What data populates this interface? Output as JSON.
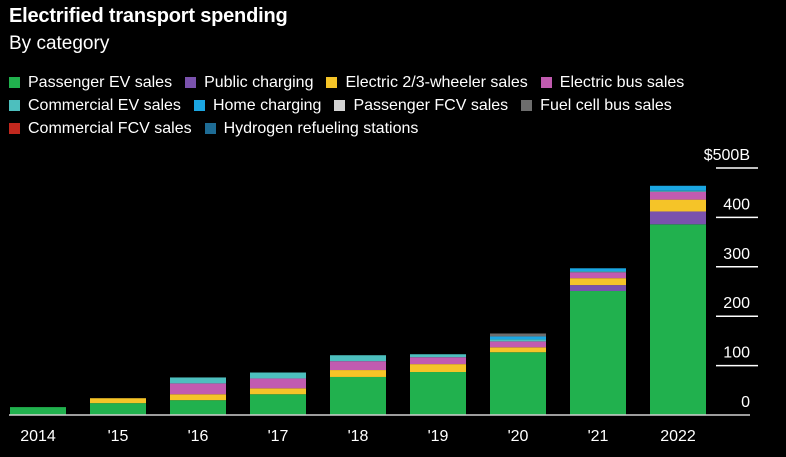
{
  "chart_data": {
    "type": "bar",
    "stacked": true,
    "title": "Electrified transport spending",
    "subtitle": "By category",
    "xlabel": "",
    "ylabel": "",
    "unit_prefix": "$",
    "unit_suffix": "B",
    "ylim": [
      0,
      500
    ],
    "yticks": [
      0,
      100,
      200,
      300,
      400,
      500
    ],
    "ytick_labels": [
      "0",
      "100",
      "200",
      "300",
      "400",
      "$500B"
    ],
    "categories": [
      "2014",
      "'15",
      "'16",
      "'17",
      "'18",
      "'19",
      "'20",
      "'21",
      "2022"
    ],
    "legend_position": "top-left",
    "series": [
      {
        "name": "Passenger EV sales",
        "color": "#21b14e",
        "values": [
          16,
          24,
          30,
          42,
          77,
          87,
          127,
          251,
          386
        ]
      },
      {
        "name": "Public charging",
        "color": "#7a52ad",
        "values": [
          0,
          0,
          0,
          0,
          0,
          0,
          0,
          12,
          26
        ]
      },
      {
        "name": "Electric 2/3-wheeler sales",
        "color": "#f5c428",
        "values": [
          0,
          10,
          12,
          12,
          14,
          16,
          10,
          14,
          24
        ]
      },
      {
        "name": "Electric bus sales",
        "color": "#c15bb0",
        "values": [
          0,
          0,
          22,
          20,
          18,
          14,
          12,
          12,
          16
        ]
      },
      {
        "name": "Commercial EV sales",
        "color": "#4dbfbe",
        "values": [
          0,
          0,
          12,
          12,
          12,
          6,
          4,
          2,
          2
        ]
      },
      {
        "name": "Home charging",
        "color": "#1ba6e2",
        "values": [
          0,
          0,
          0,
          0,
          0,
          0,
          6,
          6,
          10
        ]
      },
      {
        "name": "Passenger FCV sales",
        "color": "#d3d3d3",
        "values": [
          0,
          0,
          0,
          0,
          0,
          0,
          0,
          0,
          0
        ]
      },
      {
        "name": "Fuel cell bus sales",
        "color": "#6d6d6d",
        "values": [
          0,
          0,
          0,
          0,
          0,
          0,
          6,
          0,
          0
        ]
      },
      {
        "name": "Commercial FCV sales",
        "color": "#c1281e",
        "values": [
          0,
          0,
          0,
          0,
          0,
          0,
          0,
          0,
          0
        ]
      },
      {
        "name": "Hydrogen refueling stations",
        "color": "#1e6c95",
        "values": [
          0,
          0,
          0,
          0,
          0,
          0,
          0,
          0,
          0
        ]
      }
    ],
    "legend_rows": [
      [
        0,
        1,
        2,
        3
      ],
      [
        4,
        5,
        6,
        7
      ],
      [
        8,
        9
      ]
    ]
  }
}
